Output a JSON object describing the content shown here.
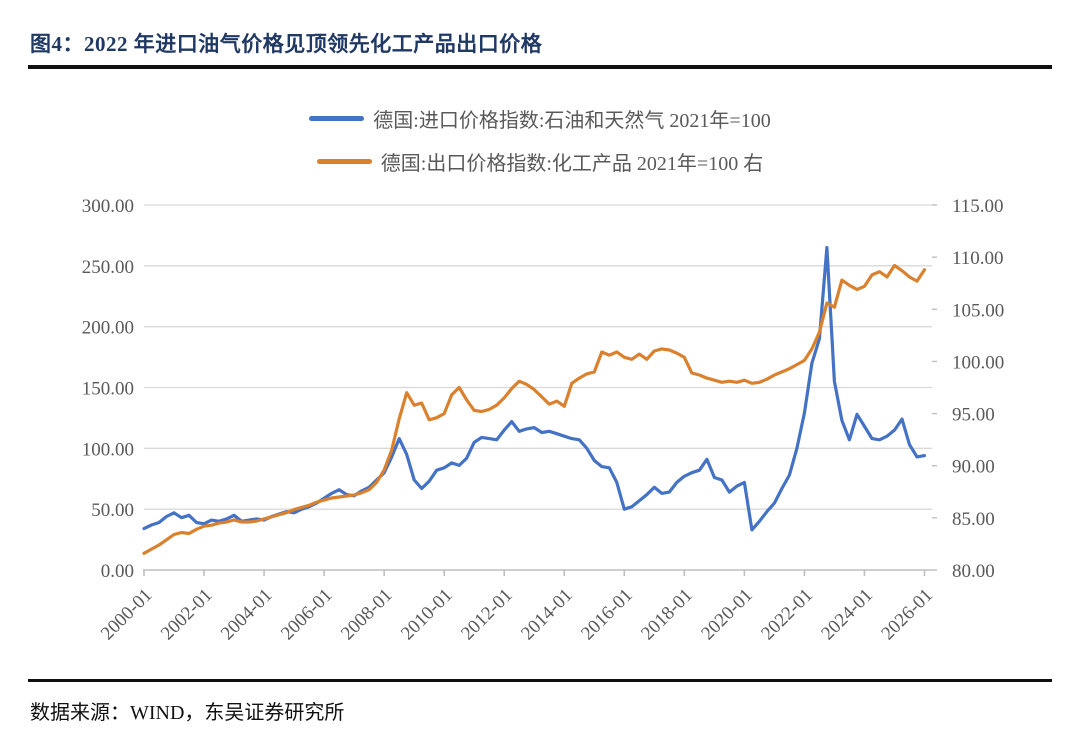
{
  "page": {
    "title": "图4：2022 年进口油气价格见顶领先化工产品出口价格",
    "source": "数据来源：WIND，东吴证券研究所"
  },
  "chart_data": {
    "type": "line",
    "title": "2022 年进口油气价格见顶领先化工产品出口价格",
    "legend_position": "top-center",
    "grid": "horizontal",
    "x_tick_labels": [
      "2000-01",
      "2002-01",
      "2004-01",
      "2006-01",
      "2008-01",
      "2010-01",
      "2012-01",
      "2014-01",
      "2016-01",
      "2018-01",
      "2020-01",
      "2022-01",
      "2024-01",
      "2026-01"
    ],
    "left_axis": {
      "min": 0,
      "max": 300,
      "tick_labels": [
        "300.00",
        "250.00",
        "200.00",
        "150.00",
        "100.00",
        "50.00",
        "0.00"
      ]
    },
    "right_axis": {
      "min": 80,
      "max": 115,
      "tick_labels": [
        "115.00",
        "110.00",
        "105.00",
        "100.00",
        "95.00",
        "90.00",
        "85.00",
        "80.00"
      ]
    },
    "colors": {
      "grid": "#D9D9D9",
      "axis": "#BFBFBF",
      "labels": "#595959"
    },
    "dates": [
      "2000-01",
      "2000-04",
      "2000-07",
      "2000-10",
      "2001-01",
      "2001-04",
      "2001-07",
      "2001-10",
      "2002-01",
      "2002-04",
      "2002-07",
      "2002-10",
      "2003-01",
      "2003-04",
      "2003-07",
      "2003-10",
      "2004-01",
      "2004-04",
      "2004-07",
      "2004-10",
      "2005-01",
      "2005-04",
      "2005-07",
      "2005-10",
      "2006-01",
      "2006-04",
      "2006-07",
      "2006-10",
      "2007-01",
      "2007-04",
      "2007-07",
      "2007-10",
      "2008-01",
      "2008-04",
      "2008-07",
      "2008-10",
      "2009-01",
      "2009-04",
      "2009-07",
      "2009-10",
      "2010-01",
      "2010-04",
      "2010-07",
      "2010-10",
      "2011-01",
      "2011-04",
      "2011-07",
      "2011-10",
      "2012-01",
      "2012-04",
      "2012-07",
      "2012-10",
      "2013-01",
      "2013-04",
      "2013-07",
      "2013-10",
      "2014-01",
      "2014-04",
      "2014-07",
      "2014-10",
      "2015-01",
      "2015-04",
      "2015-07",
      "2015-10",
      "2016-01",
      "2016-04",
      "2016-07",
      "2016-10",
      "2017-01",
      "2017-04",
      "2017-07",
      "2017-10",
      "2018-01",
      "2018-04",
      "2018-07",
      "2018-10",
      "2019-01",
      "2019-04",
      "2019-07",
      "2019-10",
      "2020-01",
      "2020-04",
      "2020-07",
      "2020-10",
      "2021-01",
      "2021-04",
      "2021-07",
      "2021-10",
      "2022-01",
      "2022-04",
      "2022-07",
      "2022-10",
      "2023-01",
      "2023-04",
      "2023-07",
      "2023-10",
      "2024-01",
      "2024-04",
      "2024-07",
      "2024-10",
      "2025-01",
      "2025-04",
      "2025-07",
      "2025-10",
      "2026-01"
    ],
    "series": [
      {
        "name": "德国:进口价格指数:石油和天然气 2021年=100",
        "axis": "left",
        "color": "#4472C4",
        "values": [
          34,
          37,
          39,
          44,
          47,
          43,
          45,
          39,
          38,
          41,
          40,
          42,
          45,
          40,
          41,
          42,
          41,
          44,
          46,
          48,
          47,
          50,
          52,
          55,
          59,
          63,
          66,
          62,
          61,
          65,
          68,
          74,
          80,
          93,
          108,
          95,
          74,
          67,
          73,
          82,
          84,
          88,
          86,
          92,
          105,
          109,
          108,
          107,
          115,
          122,
          114,
          116,
          117,
          113,
          114,
          112,
          110,
          108,
          107,
          100,
          90,
          85,
          84,
          72,
          50,
          52,
          57,
          62,
          68,
          63,
          64,
          72,
          77,
          80,
          82,
          91,
          76,
          74,
          64,
          69,
          72,
          33,
          40,
          48,
          55,
          67,
          78,
          100,
          129,
          170,
          190,
          265,
          155,
          123,
          107,
          128,
          118,
          108,
          107,
          110,
          115,
          124,
          103,
          93,
          94
        ]
      },
      {
        "name": "德国:出口价格指数:化工产品 2021年=100 右",
        "axis": "right",
        "color": "#D9812E",
        "values": [
          81.6,
          82,
          82.4,
          82.9,
          83.4,
          83.6,
          83.5,
          83.9,
          84.2,
          84.3,
          84.5,
          84.6,
          84.8,
          84.6,
          84.6,
          84.7,
          84.9,
          85.1,
          85.3,
          85.5,
          85.8,
          86,
          86.2,
          86.5,
          86.7,
          86.9,
          87,
          87.1,
          87.2,
          87.4,
          87.7,
          88.4,
          89.6,
          91.5,
          94.5,
          97,
          95.8,
          96,
          94.4,
          94.6,
          95,
          96.8,
          97.5,
          96.3,
          95.3,
          95.2,
          95.4,
          95.8,
          96.5,
          97.4,
          98.1,
          97.8,
          97.3,
          96.6,
          95.9,
          96.2,
          95.7,
          97.9,
          98.4,
          98.8,
          99,
          100.9,
          100.6,
          100.9,
          100.4,
          100.2,
          100.7,
          100.2,
          101,
          101.2,
          101.1,
          100.8,
          100.4,
          98.9,
          98.7,
          98.4,
          98.2,
          98,
          98.1,
          98,
          98.2,
          97.9,
          98,
          98.3,
          98.7,
          99,
          99.3,
          99.7,
          100.1,
          101.2,
          102.8,
          105.6,
          105.2,
          107.8,
          107.3,
          106.9,
          107.2,
          108.3,
          108.6,
          108.1,
          109.2,
          108.7,
          108.1,
          107.7,
          108.8
        ]
      }
    ]
  }
}
